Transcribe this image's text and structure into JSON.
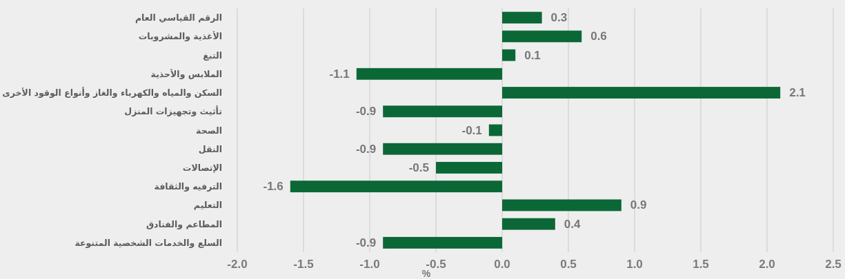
{
  "chart_data": {
    "type": "bar",
    "orientation": "horizontal",
    "categories": [
      "الرقم القياسي العام",
      "الأغذية والمشروبات",
      "التبغ",
      "الملابس والأحذية",
      "السكن والمياه والكهرباء والغاز وأنواع الوقود الأخرى",
      "تأثيث وتجهيزات المنزل",
      "الصحة",
      "النقل",
      "الإتصالات",
      "الترفيه والثقافة",
      "التعليم",
      "المطاعم والفنادق",
      "السلع والخدمات الشخصية المتنوعة"
    ],
    "values": [
      0.3,
      0.6,
      0.1,
      -1.1,
      2.1,
      -0.9,
      -0.1,
      -0.9,
      -0.5,
      -1.6,
      0.9,
      0.4,
      -0.9
    ],
    "color": "#0b6836",
    "xlim": [
      -2.0,
      2.5
    ],
    "xticks": [
      {
        "value": -2.0,
        "label": "-2.0"
      },
      -1.5,
      {
        "value": -1.0,
        "label": "-1.0"
      },
      -0.5,
      {
        "value": 0.0,
        "label": "0.0"
      },
      0.5,
      {
        "value": 1.0,
        "label": "1.0"
      },
      1.5,
      {
        "value": 2.0,
        "label": "2.0"
      },
      2.5
    ],
    "xlabel": "%",
    "grid": "x",
    "data_labels": true
  }
}
